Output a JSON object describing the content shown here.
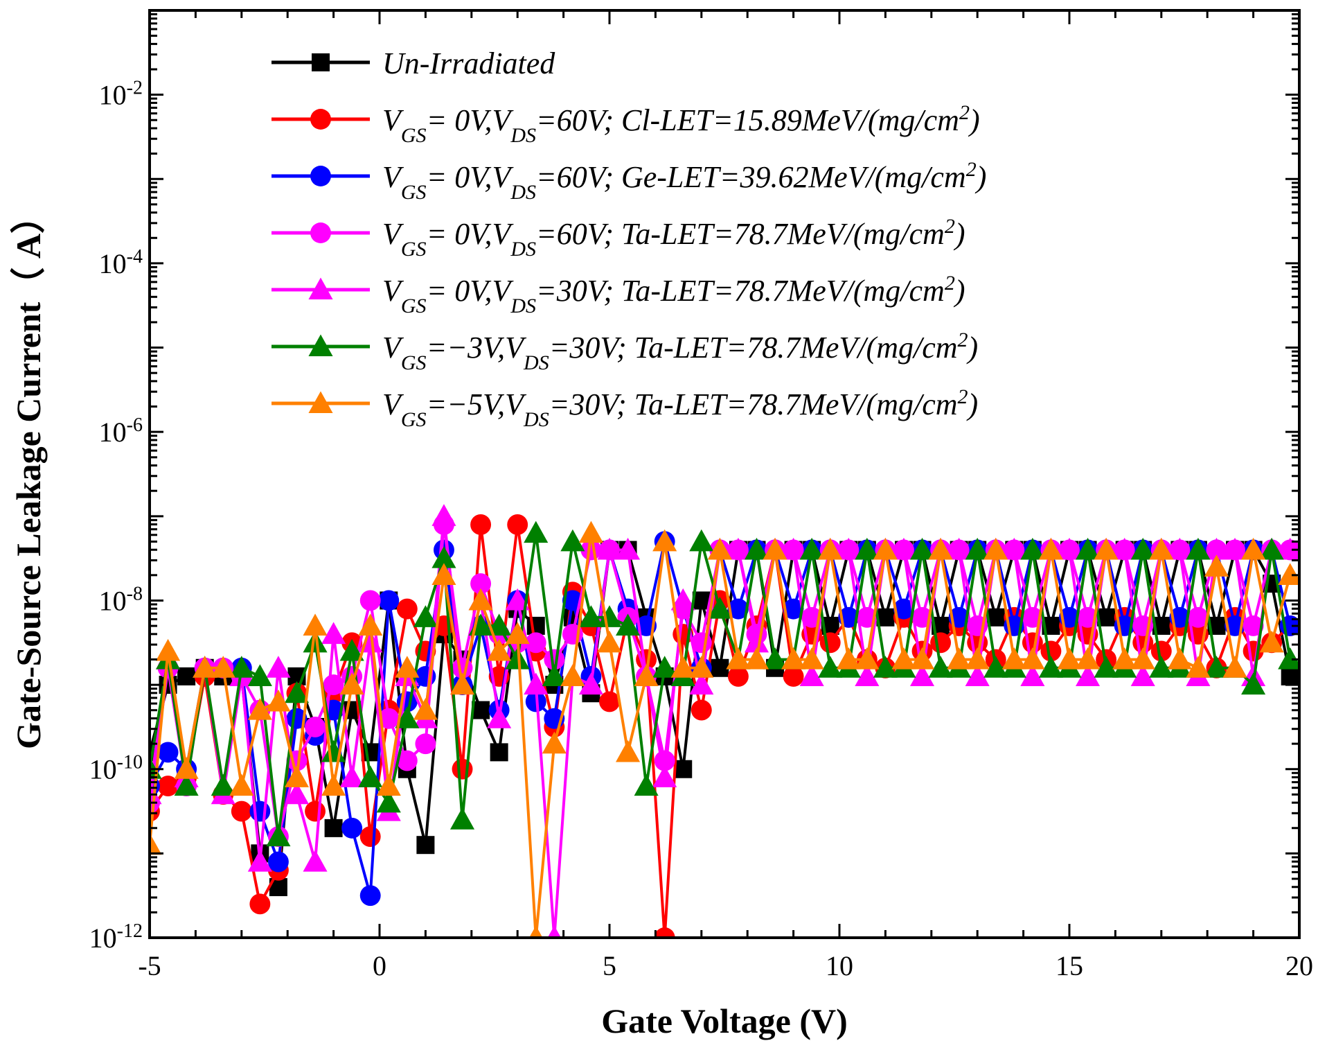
{
  "chart_data": {
    "type": "line",
    "title": "",
    "xlabel": "Gate Voltage (V)",
    "ylabel": "Gate-Source Leakage Current（ A）",
    "xlim": [
      -5,
      20
    ],
    "ylim_log10": [
      -12,
      -1
    ],
    "y_scale": "log",
    "grid": false,
    "legend_position": "top",
    "x_ticks": [
      {
        "value": -5,
        "label": "-5"
      },
      {
        "value": 0,
        "label": "0"
      },
      {
        "value": 5,
        "label": "5"
      },
      {
        "value": 10,
        "label": "10"
      },
      {
        "value": 15,
        "label": "15"
      },
      {
        "value": 20,
        "label": "20"
      }
    ],
    "y_ticks": [
      {
        "exp": -12,
        "base": "10",
        "sup": "-12"
      },
      {
        "exp": -10,
        "base": "10",
        "sup": "-10"
      },
      {
        "exp": -8,
        "base": "10",
        "sup": "-8"
      },
      {
        "exp": -6,
        "base": "10",
        "sup": "-6"
      },
      {
        "exp": -4,
        "base": "10",
        "sup": "-4"
      },
      {
        "exp": -2,
        "base": "10",
        "sup": "-2"
      }
    ],
    "x": [
      -5.0,
      -4.6,
      -4.2,
      -3.8,
      -3.4,
      -3.0,
      -2.6,
      -2.2,
      -1.8,
      -1.4,
      -1.0,
      -0.6,
      -0.2,
      0.2,
      0.6,
      1.0,
      1.4,
      1.8,
      2.2,
      2.6,
      3.0,
      3.4,
      3.8,
      4.2,
      4.6,
      5.0,
      5.4,
      5.8,
      6.2,
      6.6,
      7.0,
      7.4,
      7.8,
      8.2,
      8.6,
      9.0,
      9.4,
      9.8,
      10.2,
      10.6,
      11.0,
      11.4,
      11.8,
      12.2,
      12.6,
      13.0,
      13.4,
      13.8,
      14.2,
      14.6,
      15.0,
      15.4,
      15.8,
      16.2,
      16.6,
      17.0,
      17.4,
      17.8,
      18.2,
      18.6,
      19.0,
      19.4,
      19.8
    ],
    "series": [
      {
        "name": "Un-Irradiated",
        "color": "#000000",
        "marker": "square",
        "values_log10": [
          -9.8,
          -9.0,
          -8.9,
          -8.8,
          -8.9,
          -8.9,
          -11.0,
          -11.4,
          -8.9,
          -9.5,
          -10.7,
          -9.3,
          -9.8,
          -8.0,
          -10.0,
          -10.9,
          -8.4,
          -8.7,
          -9.3,
          -9.8,
          -8.1,
          -8.3,
          -9.0,
          -8.2,
          -9.1,
          -7.4,
          -7.4,
          -8.2,
          -8.9,
          -10.0,
          -8.0,
          -8.8,
          -7.4,
          -7.4,
          -8.8,
          -7.4,
          -7.4,
          -8.3,
          -7.4,
          -7.4,
          -8.2,
          -7.4,
          -7.4,
          -8.3,
          -7.4,
          -7.4,
          -8.2,
          -7.4,
          -7.4,
          -8.3,
          -7.4,
          -7.4,
          -8.2,
          -7.4,
          -7.4,
          -8.3,
          -7.4,
          -7.4,
          -8.3,
          -7.4,
          -7.4,
          -7.8,
          -8.9
        ]
      },
      {
        "name": "V_GS= 0V,V_DS=60V; Cl-LET=15.89MeV/(mg/cm^2)",
        "color": "#ff0000",
        "marker": "circle",
        "values_log10": [
          -10.5,
          -10.2,
          -10.1,
          -8.9,
          -10.3,
          -10.5,
          -11.6,
          -11.2,
          -9.1,
          -10.5,
          -9.1,
          -8.5,
          -10.8,
          -9.3,
          -8.1,
          -8.6,
          -8.3,
          -10.0,
          -7.1,
          -8.9,
          -7.1,
          -8.6,
          -9.5,
          -7.9,
          -8.3,
          -9.2,
          -8.2,
          -8.7,
          -12.0,
          -8.4,
          -9.3,
          -8.0,
          -8.9,
          -8.3,
          -7.4,
          -8.9,
          -8.4,
          -8.5,
          -8.2,
          -8.7,
          -8.8,
          -8.2,
          -8.6,
          -8.5,
          -8.3,
          -8.5,
          -8.7,
          -8.2,
          -8.5,
          -8.6,
          -8.3,
          -8.4,
          -8.7,
          -8.2,
          -8.5,
          -8.6,
          -8.3,
          -8.4,
          -8.8,
          -8.2,
          -8.6,
          -8.5,
          -8.3
        ]
      },
      {
        "name": "V_GS= 0V,V_DS=60V; Ge-LET=39.62MeV/(mg/cm^2)",
        "color": "#0000ff",
        "marker": "circle",
        "values_log10": [
          -10.2,
          -9.8,
          -10.0,
          -8.8,
          -8.8,
          -8.8,
          -10.5,
          -11.1,
          -9.4,
          -9.6,
          -9.3,
          -10.7,
          -11.5,
          -8.0,
          -9.2,
          -8.9,
          -7.4,
          -9.0,
          -8.3,
          -9.3,
          -8.0,
          -9.2,
          -9.4,
          -8.0,
          -8.9,
          -7.4,
          -8.1,
          -8.3,
          -7.3,
          -8.1,
          -8.8,
          -7.4,
          -8.1,
          -7.4,
          -7.4,
          -8.1,
          -7.4,
          -7.4,
          -8.2,
          -7.4,
          -7.4,
          -8.1,
          -7.4,
          -7.4,
          -8.2,
          -7.4,
          -7.4,
          -8.3,
          -7.4,
          -7.4,
          -8.2,
          -7.4,
          -7.4,
          -8.3,
          -7.4,
          -7.4,
          -8.2,
          -7.4,
          -7.4,
          -8.3,
          -7.4,
          -7.4,
          -8.3
        ]
      },
      {
        "name": "V_GS= 0V,V_DS=60V; Ta-LET=78.7MeV/(mg/cm^2)",
        "color": "#ff00ff",
        "marker": "circle",
        "values_log10": [
          -10.4,
          -8.8,
          -10.2,
          -8.8,
          -8.8,
          -8.9,
          -9.3,
          -10.8,
          -9.9,
          -9.5,
          -9.0,
          -8.9,
          -8.0,
          -9.4,
          -9.9,
          -9.7,
          -7.1,
          -8.8,
          -7.8,
          -8.4,
          -8.5,
          -8.5,
          -8.7,
          -8.4,
          -7.4,
          -7.4,
          -8.2,
          -8.9,
          -9.9,
          -8.1,
          -8.5,
          -7.4,
          -7.4,
          -8.4,
          -7.4,
          -7.4,
          -8.2,
          -7.4,
          -7.4,
          -8.2,
          -7.4,
          -7.4,
          -8.2,
          -7.4,
          -7.4,
          -8.3,
          -7.4,
          -7.4,
          -8.2,
          -7.4,
          -7.4,
          -8.2,
          -7.4,
          -7.4,
          -8.3,
          -7.4,
          -7.4,
          -8.2,
          -7.4,
          -7.4,
          -8.3,
          -7.4,
          -7.4
        ]
      },
      {
        "name": "V_GS= 0V,V_DS=30V; Ta-LET=78.7MeV/(mg/cm^2)",
        "color": "#ff00ff",
        "marker": "triangle",
        "values_log10": [
          -10.3,
          -8.7,
          -10.1,
          -8.8,
          -10.3,
          -8.9,
          -11.1,
          -8.8,
          -10.3,
          -11.1,
          -8.4,
          -10.1,
          -8.5,
          -10.5,
          -8.9,
          -9.4,
          -7.0,
          -9.0,
          -8.0,
          -9.4,
          -8.0,
          -9.0,
          -12.0,
          -8.9,
          -9.0,
          -7.4,
          -7.4,
          -8.9,
          -10.1,
          -8.0,
          -9.0,
          -7.4,
          -7.4,
          -8.5,
          -7.4,
          -7.4,
          -8.9,
          -7.4,
          -7.4,
          -8.9,
          -7.4,
          -7.4,
          -8.9,
          -7.4,
          -7.4,
          -8.9,
          -7.4,
          -7.4,
          -8.9,
          -7.4,
          -7.4,
          -8.9,
          -7.4,
          -7.4,
          -8.9,
          -7.4,
          -7.4,
          -8.9,
          -7.4,
          -7.4,
          -8.9,
          -7.4,
          -7.4
        ]
      },
      {
        "name": "V_GS=−3V,V_DS=30V; Ta-LET=78.7MeV/(mg/cm^2)",
        "color": "#008000",
        "marker": "triangle",
        "values_log10": [
          -10.0,
          -8.7,
          -10.2,
          -8.8,
          -10.2,
          -8.8,
          -8.9,
          -10.8,
          -9.1,
          -8.5,
          -9.8,
          -8.6,
          -10.1,
          -10.4,
          -9.4,
          -8.2,
          -7.5,
          -10.6,
          -8.3,
          -8.3,
          -8.7,
          -7.2,
          -8.9,
          -7.3,
          -8.2,
          -8.2,
          -8.3,
          -10.2,
          -8.8,
          -8.9,
          -7.3,
          -8.1,
          -8.7,
          -7.4,
          -8.7,
          -8.7,
          -7.4,
          -8.8,
          -8.8,
          -7.4,
          -8.8,
          -8.8,
          -7.4,
          -8.8,
          -8.8,
          -7.4,
          -8.8,
          -8.8,
          -7.4,
          -8.8,
          -8.8,
          -7.4,
          -8.8,
          -8.8,
          -7.4,
          -8.8,
          -8.8,
          -7.4,
          -8.8,
          -8.8,
          -9.0,
          -7.4,
          -8.7
        ]
      },
      {
        "name": "V_GS=−5V,V_DS=30V; Ta-LET=78.7MeV/(mg/cm^2)",
        "color": "#ff8000",
        "marker": "triangle",
        "values_log10": [
          -10.9,
          -8.6,
          -10.0,
          -8.8,
          -8.8,
          -10.2,
          -9.3,
          -9.2,
          -10.1,
          -8.3,
          -10.2,
          -9.0,
          -8.3,
          -10.2,
          -8.8,
          -9.3,
          -7.7,
          -9.0,
          -8.0,
          -8.6,
          -8.4,
          -12.0,
          -9.7,
          -8.9,
          -7.2,
          -8.5,
          -9.8,
          -8.9,
          -7.3,
          -8.8,
          -8.8,
          -7.4,
          -8.7,
          -8.7,
          -7.4,
          -8.7,
          -8.7,
          -7.4,
          -8.7,
          -8.7,
          -7.4,
          -8.7,
          -8.7,
          -7.4,
          -8.7,
          -8.7,
          -7.4,
          -8.7,
          -8.7,
          -7.4,
          -8.7,
          -8.7,
          -7.4,
          -8.7,
          -8.7,
          -7.4,
          -8.7,
          -8.8,
          -7.6,
          -8.8,
          -7.4,
          -8.5,
          -7.7
        ]
      }
    ],
    "legend": [
      {
        "marker": "square",
        "color": "#000000",
        "parts": [
          {
            "t": "Un-Irradiated"
          }
        ]
      },
      {
        "marker": "circle",
        "color": "#ff0000",
        "parts": [
          {
            "t": "V"
          },
          {
            "t": "GS",
            "sub": true
          },
          {
            "t": "= 0V,V"
          },
          {
            "t": "DS",
            "sub": true
          },
          {
            "t": "=60V; Cl-LET=15.89MeV/(mg/cm"
          },
          {
            "t": "2",
            "sup": true
          },
          {
            "t": ")"
          }
        ]
      },
      {
        "marker": "circle",
        "color": "#0000ff",
        "parts": [
          {
            "t": "V"
          },
          {
            "t": "GS",
            "sub": true
          },
          {
            "t": "= 0V,V"
          },
          {
            "t": "DS",
            "sub": true
          },
          {
            "t": "=60V; Ge-LET=39.62MeV/(mg/cm"
          },
          {
            "t": "2",
            "sup": true
          },
          {
            "t": ")"
          }
        ]
      },
      {
        "marker": "circle",
        "color": "#ff00ff",
        "parts": [
          {
            "t": "V"
          },
          {
            "t": "GS",
            "sub": true
          },
          {
            "t": "= 0V,V"
          },
          {
            "t": "DS",
            "sub": true
          },
          {
            "t": "=60V; Ta-LET=78.7MeV/(mg/cm"
          },
          {
            "t": "2",
            "sup": true
          },
          {
            "t": ")"
          }
        ]
      },
      {
        "marker": "triangle",
        "color": "#ff00ff",
        "parts": [
          {
            "t": "V"
          },
          {
            "t": "GS",
            "sub": true
          },
          {
            "t": "= 0V,V"
          },
          {
            "t": "DS",
            "sub": true
          },
          {
            "t": "=30V; Ta-LET=78.7MeV/(mg/cm"
          },
          {
            "t": "2",
            "sup": true
          },
          {
            "t": ")"
          }
        ]
      },
      {
        "marker": "triangle",
        "color": "#008000",
        "parts": [
          {
            "t": "V"
          },
          {
            "t": "GS",
            "sub": true
          },
          {
            "t": "=−3V,V"
          },
          {
            "t": "DS",
            "sub": true
          },
          {
            "t": "=30V; Ta-LET=78.7MeV/(mg/cm"
          },
          {
            "t": "2",
            "sup": true
          },
          {
            "t": ")"
          }
        ]
      },
      {
        "marker": "triangle",
        "color": "#ff8000",
        "parts": [
          {
            "t": "V"
          },
          {
            "t": "GS",
            "sub": true
          },
          {
            "t": "=−5V,V"
          },
          {
            "t": "DS",
            "sub": true
          },
          {
            "t": "=30V; Ta-LET=78.7MeV/(mg/cm"
          },
          {
            "t": "2",
            "sup": true
          },
          {
            "t": ")"
          }
        ]
      }
    ]
  }
}
